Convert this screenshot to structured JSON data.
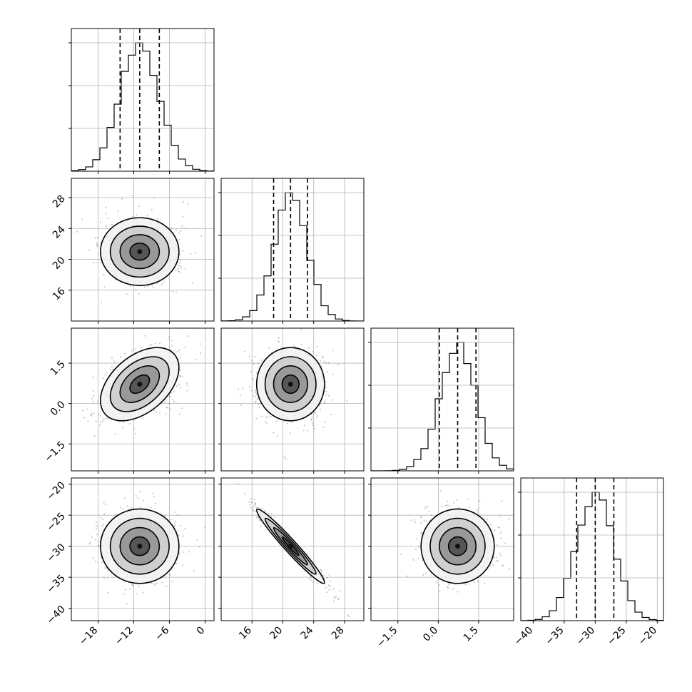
{
  "chart_data": {
    "type": "corner",
    "parameters": [
      {
        "range": [
          -22.5,
          1.5
        ],
        "ticks": [
          -18,
          -12,
          -6,
          0
        ],
        "tick_labels": [
          "−18",
          "−12",
          "−6",
          "0"
        ],
        "mean": -11,
        "std": 3.3,
        "quantiles": [
          -14.3,
          -11.0,
          -7.7
        ]
      },
      {
        "range": [
          12,
          30.5
        ],
        "ticks": [
          16,
          20,
          24,
          28
        ],
        "tick_labels": [
          "16",
          "20",
          "24",
          "28"
        ],
        "mean": 21,
        "std": 2.2,
        "quantiles": [
          18.8,
          21.0,
          23.2
        ]
      },
      {
        "range": [
          -2.5,
          2.8
        ],
        "ticks": [
          -1.5,
          0.0,
          1.5
        ],
        "tick_labels": [
          "−1.5",
          "0.0",
          "1.5"
        ],
        "mean": 0.72,
        "std": 0.68,
        "quantiles": [
          0.04,
          0.72,
          1.4
        ]
      },
      {
        "range": [
          -42,
          -19
        ],
        "ticks": [
          -40,
          -35,
          -30,
          -25,
          -20
        ],
        "tick_labels": [
          "−40",
          "−35",
          "−30",
          "−25",
          "−20"
        ],
        "mean": -30,
        "std": 3.0,
        "quantiles": [
          -33.0,
          -30.0,
          -27.0
        ]
      }
    ],
    "correlations": [
      [
        1,
        0,
        0.45,
        0
      ],
      [
        0,
        1,
        0,
        -0.97
      ],
      [
        0.45,
        0,
        1,
        0
      ],
      [
        0,
        -0.97,
        0,
        1
      ]
    ],
    "contour_levels_sigma": [
      0.5,
      1.0,
      1.5,
      2.0
    ],
    "hist_bins": 20,
    "grid": true,
    "title": "",
    "labels": []
  }
}
